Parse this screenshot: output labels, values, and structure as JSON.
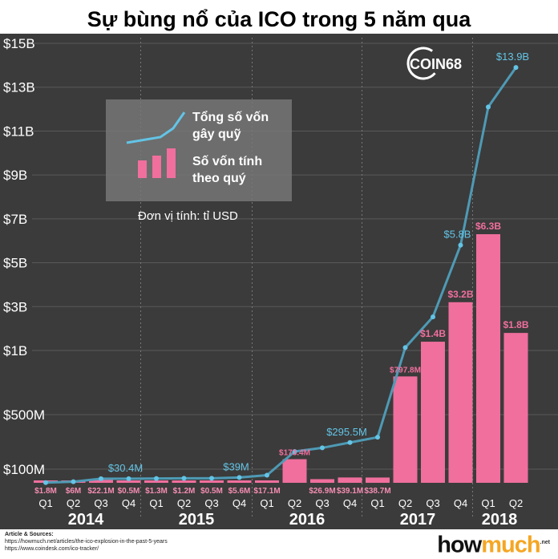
{
  "title": "Sự bùng nổ của ICO trong 5 năm qua",
  "colors": {
    "background": "#3b3b3b",
    "bar": "#f06f9d",
    "line": "#4e9ab5",
    "line_label": "#63c4e6",
    "grid": "#5a5a5a",
    "text": "#ffffff"
  },
  "brand_badge": "COIN68",
  "legend": {
    "line_label": "Tổng số vốn gây quỹ",
    "bar_label": "Số vốn tính theo quý",
    "unit": "Đơn vị tính: tỉ USD"
  },
  "footer": {
    "sources_title": "Article & Sources:",
    "source_1": "https://howmuch.net/articles/the-ico-explosion-in-the-past-5-years",
    "source_2": "https://www.coindesk.com/ico-tracker/",
    "logo_part1": "how",
    "logo_part2": "much",
    "logo_suffix": ".net"
  },
  "chart_data": {
    "type": "bar",
    "y_tick_labels": [
      "$15B",
      "$13B",
      "$11B",
      "$9B",
      "$7B",
      "$5B",
      "$3B",
      "$1B",
      "$500M",
      "$100M"
    ],
    "years": [
      "2014",
      "2015",
      "2016",
      "2017",
      "2018"
    ],
    "categories": [
      "Q1",
      "Q2",
      "Q3",
      "Q4",
      "Q1",
      "Q2",
      "Q3",
      "Q4",
      "Q1",
      "Q2",
      "Q3",
      "Q4",
      "Q1",
      "Q2",
      "Q3",
      "Q4",
      "Q1",
      "Q2"
    ],
    "series": [
      {
        "values_usd_millions": [
          1.8,
          6,
          22.1,
          0.5,
          1.3,
          1.2,
          0.5,
          5.6,
          17.1,
          173.4,
          26.9,
          39.1,
          38.7,
          797.8,
          1400,
          3200,
          6300,
          1800
        ],
        "labels": [
          "$1.8M",
          "$6M",
          "$22.1M",
          "$0.5M",
          "$1.3M",
          "$1.2M",
          "$0.5M",
          "$5.6M",
          "$17.1M",
          "$173.4M",
          "$26.9M",
          "$39.1M",
          "$38.7M",
          "$797.8M",
          "$1.4B",
          "$3.2B",
          "$6.3B",
          "$1.8B"
        ]
      },
      {
        "cumulative_usd_millions": [
          1.8,
          7.8,
          29.9,
          30.4,
          31.7,
          32.9,
          33.4,
          39,
          56.1,
          229.5,
          256.4,
          295.5,
          334.2,
          1132,
          2532,
          5800,
          12100,
          13900
        ],
        "annotations": [
          {
            "index": 3,
            "label": "$30.4M"
          },
          {
            "index": 7,
            "label": "$39M"
          },
          {
            "index": 11,
            "label": "$295.5M"
          },
          {
            "index": 15,
            "label": "$5.8B"
          },
          {
            "index": 17,
            "label": "$13.9B"
          }
        ]
      }
    ]
  }
}
